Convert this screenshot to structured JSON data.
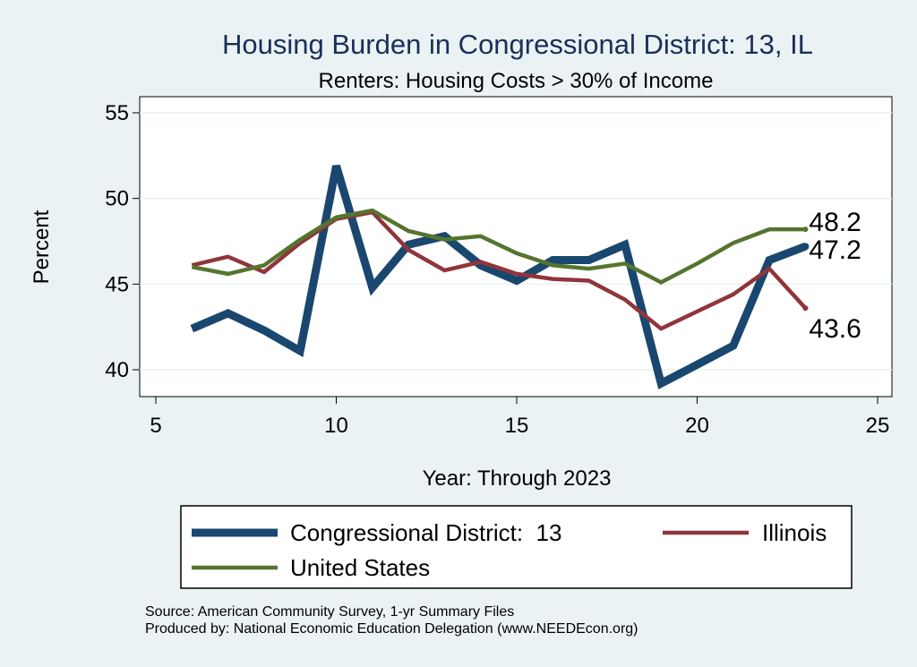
{
  "chart_data": {
    "type": "line",
    "title": "Housing Burden in Congressional District:  13, IL",
    "subtitle": "Renters: Housing Costs > 30% of Income",
    "xlabel": "Year: Through 2023",
    "ylabel": "Percent",
    "xlim": [
      5,
      25
    ],
    "ylim": [
      38.5,
      56.5
    ],
    "xticks": [
      5,
      10,
      15,
      20,
      25
    ],
    "yticks": [
      40,
      45,
      50,
      55
    ],
    "grid": true,
    "legend_position": "bottom",
    "series": [
      {
        "name": "Congressional District:  13",
        "color": "#1a476f",
        "x": [
          6,
          7,
          8,
          9,
          10,
          11,
          12,
          13,
          14,
          15,
          16,
          17,
          18,
          19,
          20,
          21,
          22,
          23
        ],
        "values": [
          42.4,
          43.3,
          42.3,
          41.1,
          51.9,
          44.8,
          47.3,
          47.8,
          46.1,
          45.2,
          46.4,
          46.4,
          47.3,
          39.2,
          40.3,
          41.4,
          46.4,
          47.2
        ],
        "end_label": "47.2"
      },
      {
        "name": "Illinois",
        "color": "#90353b",
        "x": [
          6,
          7,
          8,
          9,
          10,
          11,
          12,
          13,
          14,
          15,
          16,
          17,
          18,
          19,
          20,
          21,
          22,
          23
        ],
        "values": [
          46.1,
          46.6,
          45.7,
          47.4,
          48.8,
          49.2,
          47.0,
          45.8,
          46.3,
          45.6,
          45.3,
          45.2,
          44.1,
          42.4,
          43.4,
          44.4,
          45.9,
          43.6
        ],
        "end_label": "43.6"
      },
      {
        "name": "United States",
        "color": "#55752f",
        "x": [
          6,
          7,
          8,
          9,
          10,
          11,
          12,
          13,
          14,
          15,
          16,
          17,
          18,
          19,
          20,
          21,
          22,
          23
        ],
        "values": [
          46.0,
          45.6,
          46.1,
          47.6,
          48.9,
          49.3,
          48.1,
          47.6,
          47.8,
          46.8,
          46.1,
          45.9,
          46.2,
          45.1,
          46.2,
          47.4,
          48.2,
          48.2
        ],
        "end_label": "48.2"
      }
    ],
    "notes": [
      "Source: American Community Survey, 1-yr Summary Files",
      "Produced by: National Economic Education Delegation (www.NEEDEcon.org)"
    ]
  }
}
